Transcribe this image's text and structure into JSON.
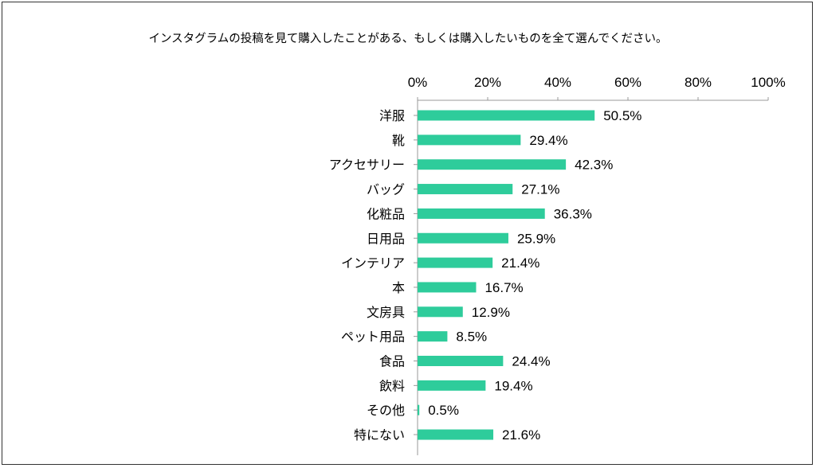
{
  "chart_data": {
    "type": "bar",
    "orientation": "horizontal",
    "title": "インスタグラムの投稿を見て購入したことがある、もしくは購入したいものを全て選んでください。",
    "categories": [
      "洋服",
      "靴",
      "アクセサリー",
      "バッグ",
      "化粧品",
      "日用品",
      "インテリア",
      "本",
      "文房具",
      "ペット用品",
      "食品",
      "飲料",
      "その他",
      "特にない"
    ],
    "values": [
      50.5,
      29.4,
      42.3,
      27.1,
      36.3,
      25.9,
      21.4,
      16.7,
      12.9,
      8.5,
      24.4,
      19.4,
      0.5,
      21.6
    ],
    "value_labels": [
      "50.5%",
      "29.4%",
      "42.3%",
      "27.1%",
      "36.3%",
      "25.9%",
      "21.4%",
      "16.7%",
      "12.9%",
      "8.5%",
      "24.4%",
      "19.4%",
      "0.5%",
      "21.6%"
    ],
    "xlim": [
      0,
      100
    ],
    "x_ticks": [
      "0%",
      "20%",
      "40%",
      "60%",
      "80%",
      "100%"
    ],
    "x_axis_position": "top",
    "grid": false,
    "legend": "none",
    "bar_color": "#2ECC9B",
    "axis_color": "#999999"
  }
}
